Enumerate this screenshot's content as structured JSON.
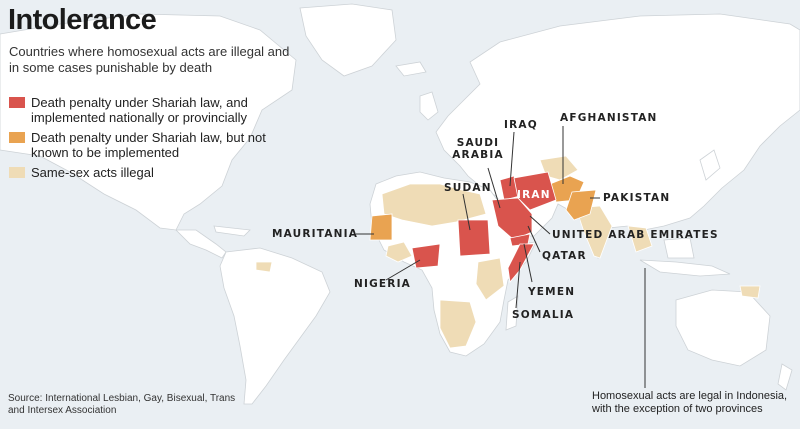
{
  "title": "Intolerance",
  "subtitle": "Countries where homosexual acts are illegal and in some cases punishable by death",
  "legend": {
    "items": [
      {
        "label": "Death penalty under Shariah law, and implemented nationally or provincially",
        "color": "#d9544d"
      },
      {
        "label": "Death penalty under Shariah law, but not known to be implemented",
        "color": "#e9a351"
      },
      {
        "label": "Same-sex acts illegal",
        "color": "#efdcb6"
      }
    ]
  },
  "country_labels": {
    "iraq": "IRAQ",
    "afghanistan": "AFGHANISTAN",
    "saudi_arabia": "SAUDI ARABIA",
    "iran": "IRAN",
    "pakistan": "PAKISTAN",
    "sudan": "SUDAN",
    "mauritania": "MAURITANIA",
    "uae": "UNITED ARAB EMIRATES",
    "qatar": "QATAR",
    "nigeria": "NIGERIA",
    "yemen": "YEMEN",
    "somalia": "SOMALIA"
  },
  "source": "Source: International Lesbian, Gay, Bisexual, Trans and Intersex Association",
  "note": "Homosexual acts are legal in Indonesia, with the exception of two provinces",
  "colors": {
    "ocean": "#eaeff3",
    "land": "#ffffff",
    "border": "#c8cdd1",
    "leader": "#333333"
  }
}
